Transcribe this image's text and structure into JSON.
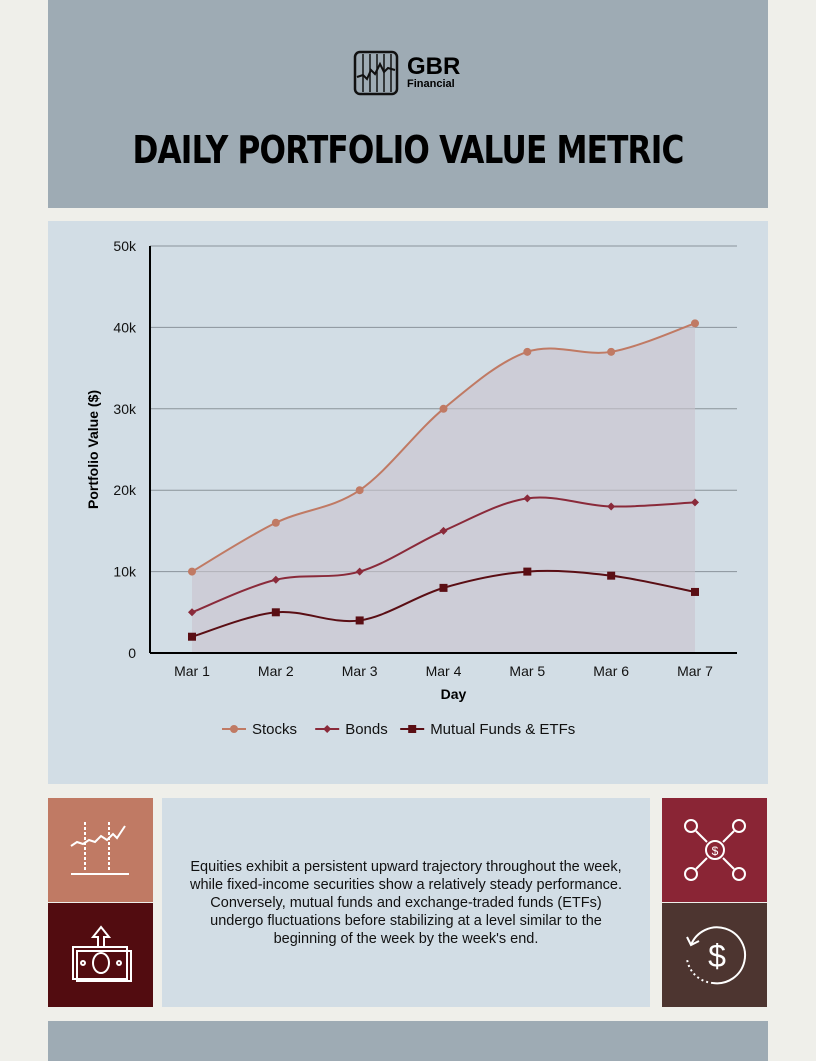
{
  "header": {
    "brand": "GBR",
    "brand_sub": "Financial",
    "title": "DAILY PORTFOLIO VALUE METRIC"
  },
  "chart_data": {
    "type": "line",
    "title": "",
    "xlabel": "Day",
    "ylabel": "Portfolio Value ($)",
    "categories": [
      "Mar 1",
      "Mar 2",
      "Mar 3",
      "Mar 4",
      "Mar 5",
      "Mar 6",
      "Mar 7"
    ],
    "ylim": [
      0,
      50000
    ],
    "yticks": [
      0,
      10000,
      20000,
      30000,
      40000,
      50000
    ],
    "ytick_labels": [
      "0",
      "10k",
      "20k",
      "30k",
      "40k",
      "50k"
    ],
    "grid": true,
    "legend_position": "bottom",
    "series": [
      {
        "name": "Stocks",
        "values": [
          10000,
          16000,
          20000,
          30000,
          37000,
          37000,
          40500
        ],
        "color": "#c07a64",
        "marker": "circle"
      },
      {
        "name": "Bonds",
        "values": [
          5000,
          9000,
          10000,
          15000,
          19000,
          18000,
          18500
        ],
        "color": "#8a2a3a",
        "marker": "diamond"
      },
      {
        "name": "Mutual Funds & ETFs",
        "values": [
          2000,
          5000,
          4000,
          8000,
          10000,
          9500,
          7500
        ],
        "color": "#5a0e14",
        "marker": "square"
      }
    ]
  },
  "summary": "Equities exhibit a persistent upward trajectory throughout the week, while fixed-income securities show a relatively steady performance. Conversely, mutual funds and exchange-traded funds (ETFs) undergo fluctuations before stabilizing at a level similar to the beginning of the week by the week's end.",
  "colors": {
    "header": "#9eabb4",
    "panel": "#d2dde5",
    "tile1": "#c07a64",
    "tile2": "#520c10",
    "tile3": "#8a2535",
    "tile4": "#4d3530"
  },
  "icons": [
    "growth-chart-icon",
    "money-up-icon",
    "money-network-icon",
    "dollar-refresh-icon"
  ]
}
